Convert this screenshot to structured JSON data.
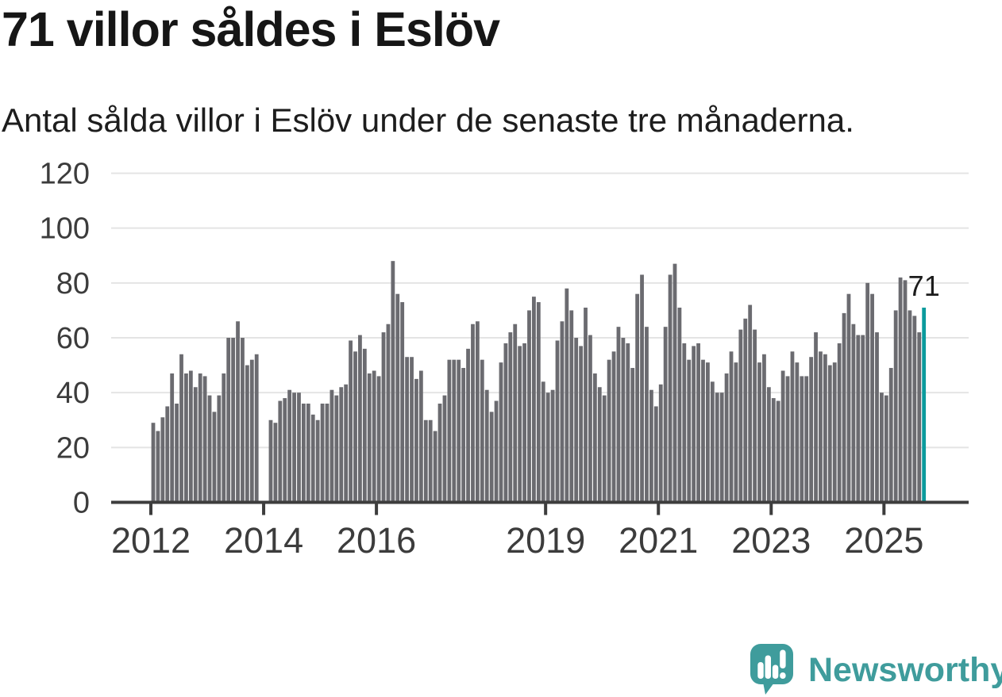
{
  "title": "71 villor såldes i Eslöv",
  "subtitle": "Antal sålda villor i Eslöv under de senaste tre månaderna.",
  "branding": {
    "name": "Newsworthy",
    "icon": "speech-bubble-bar-chart-icon",
    "color": "#3f9c9c",
    "icon_bar_color": "#ffffff"
  },
  "colors": {
    "bar": "#6b6b70",
    "highlight": "#0b9b9d",
    "grid": "#e4e4e4",
    "axis": "#3d3d3d",
    "tick_label": "#3c3c3c",
    "annotation": "#1c1c1c"
  },
  "chart_data": {
    "type": "bar",
    "title": "71 villor såldes i Eslöv",
    "subtitle": "Antal sålda villor i Eslöv under de senaste tre månaderna.",
    "x_start": "2012-01",
    "x_end": "2025-09",
    "x_tick_labels": [
      "2012",
      "2014",
      "2016",
      "2019",
      "2021",
      "2023",
      "2025"
    ],
    "y_ticks": [
      0,
      20,
      40,
      60,
      80,
      100,
      120
    ],
    "ylim": [
      0,
      120
    ],
    "grid": true,
    "legend": "none",
    "highlight_last_bar": true,
    "last_value_label": "71",
    "values": [
      29,
      26,
      31,
      35,
      47,
      36,
      54,
      47,
      48,
      42,
      47,
      46,
      39,
      33,
      39,
      47,
      60,
      60,
      66,
      60,
      50,
      52,
      54,
      null,
      null,
      30,
      29,
      37,
      38,
      41,
      40,
      40,
      36,
      36,
      32,
      30,
      36,
      36,
      41,
      39,
      42,
      43,
      59,
      55,
      61,
      56,
      47,
      48,
      46,
      62,
      65,
      88,
      76,
      73,
      53,
      53,
      45,
      48,
      30,
      30,
      26,
      36,
      39,
      52,
      52,
      52,
      49,
      56,
      65,
      66,
      52,
      41,
      33,
      37,
      51,
      58,
      62,
      65,
      57,
      58,
      70,
      75,
      73,
      44,
      40,
      41,
      59,
      66,
      78,
      70,
      60,
      57,
      71,
      61,
      47,
      42,
      39,
      52,
      55,
      64,
      60,
      58,
      49,
      76,
      83,
      64,
      41,
      35,
      43,
      64,
      83,
      87,
      71,
      58,
      52,
      57,
      58,
      52,
      51,
      44,
      40,
      40,
      47,
      55,
      51,
      63,
      67,
      72,
      63,
      51,
      54,
      42,
      38,
      37,
      48,
      46,
      55,
      51,
      46,
      46,
      53,
      62,
      55,
      54,
      50,
      51,
      58,
      69,
      76,
      65,
      61,
      61,
      80,
      76,
      62,
      40,
      39,
      49,
      70,
      82,
      81,
      70,
      68,
      62,
      71
    ]
  }
}
